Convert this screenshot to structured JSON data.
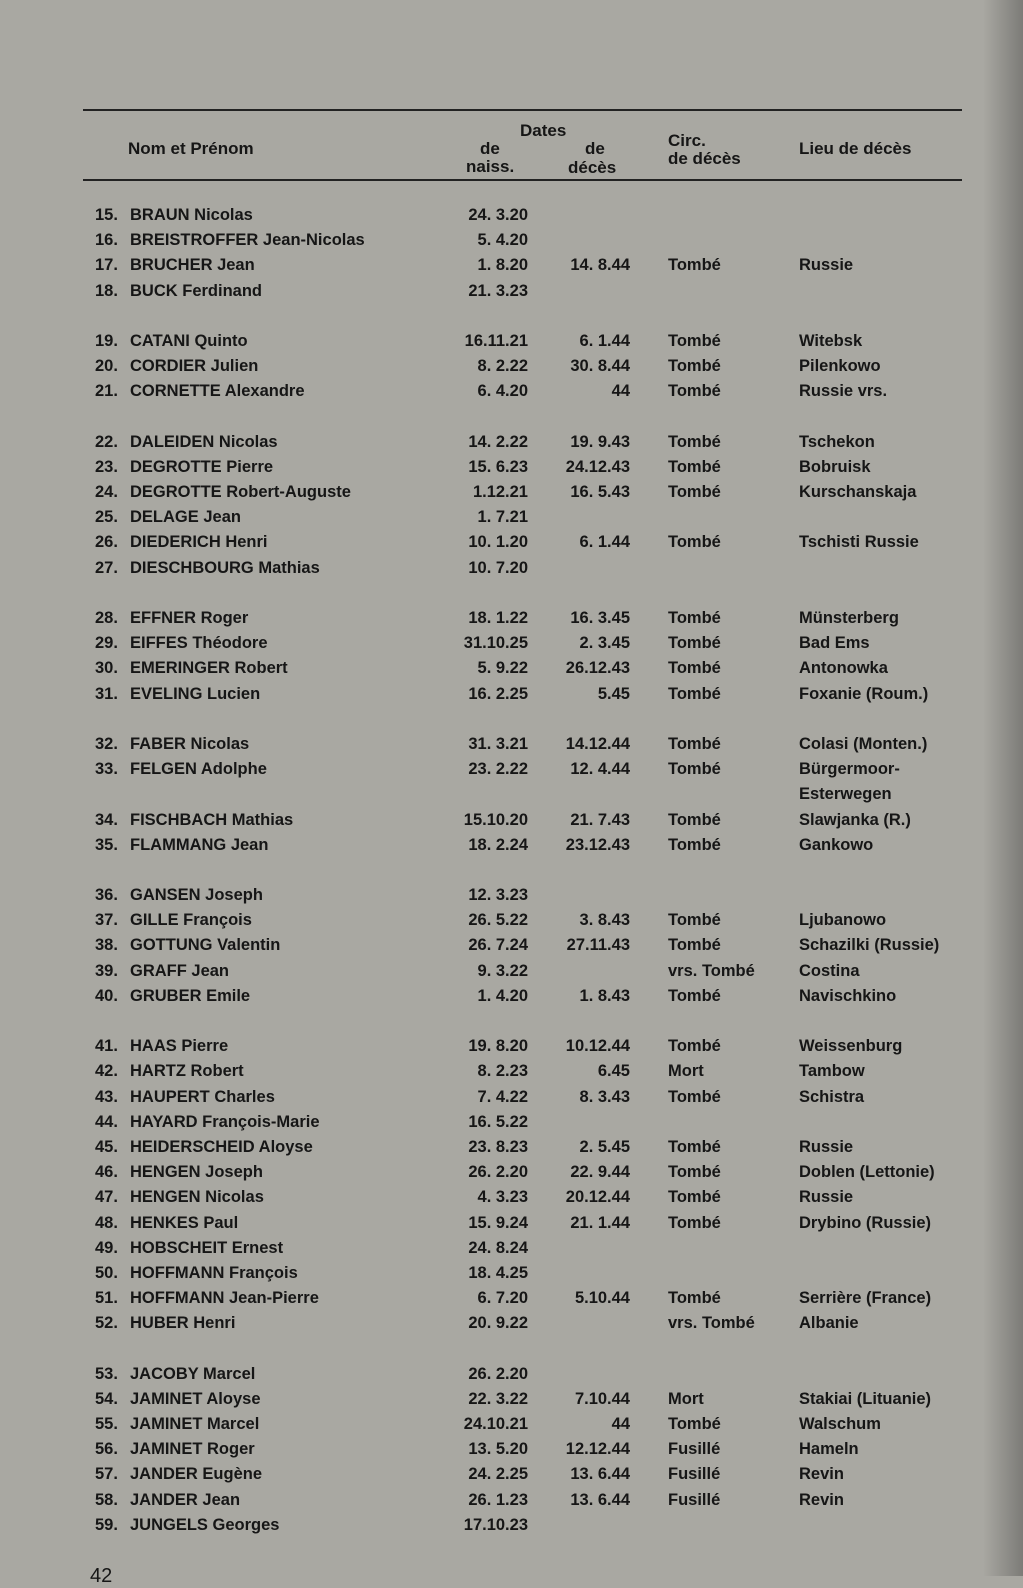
{
  "header": {
    "name_col": "Nom et Prénom",
    "dates": "Dates",
    "birth_1": "de",
    "birth_2": "naiss.",
    "death_1": "de",
    "death_2": "décès",
    "circ_1": "Circ.",
    "circ_2": "de décès",
    "place": "Lieu de décès"
  },
  "groups": [
    [
      {
        "n": "15.",
        "name": "BRAUN Nicolas",
        "birth": "24. 3.20",
        "death": "",
        "circ": "",
        "place": ""
      },
      {
        "n": "16.",
        "name": "BREISTROFFER Jean-Nicolas",
        "birth": "5. 4.20",
        "death": "",
        "circ": "",
        "place": ""
      },
      {
        "n": "17.",
        "name": "BRUCHER Jean",
        "birth": "1. 8.20",
        "death": "14. 8.44",
        "circ": "Tombé",
        "place": "Russie"
      },
      {
        "n": "18.",
        "name": "BUCK Ferdinand",
        "birth": "21. 3.23",
        "death": "",
        "circ": "",
        "place": ""
      }
    ],
    [
      {
        "n": "19.",
        "name": "CATANI Quinto",
        "birth": "16.11.21",
        "death": "6. 1.44",
        "circ": "Tombé",
        "place": "Witebsk"
      },
      {
        "n": "20.",
        "name": "CORDIER Julien",
        "birth": "8. 2.22",
        "death": "30. 8.44",
        "circ": "Tombé",
        "place": "Pilenkowo"
      },
      {
        "n": "21.",
        "name": "CORNETTE Alexandre",
        "birth": "6. 4.20",
        "death": "44",
        "circ": "Tombé",
        "place": "Russie vrs."
      }
    ],
    [
      {
        "n": "22.",
        "name": "DALEIDEN Nicolas",
        "birth": "14. 2.22",
        "death": "19. 9.43",
        "circ": "Tombé",
        "place": "Tschekon"
      },
      {
        "n": "23.",
        "name": "DEGROTTE Pierre",
        "birth": "15. 6.23",
        "death": "24.12.43",
        "circ": "Tombé",
        "place": "Bobruisk"
      },
      {
        "n": "24.",
        "name": "DEGROTTE Robert-Auguste",
        "birth": "1.12.21",
        "death": "16. 5.43",
        "circ": "Tombé",
        "place": "Kurschanskaja"
      },
      {
        "n": "25.",
        "name": "DELAGE Jean",
        "birth": "1. 7.21",
        "death": "",
        "circ": "",
        "place": ""
      },
      {
        "n": "26.",
        "name": "DIEDERICH Henri",
        "birth": "10. 1.20",
        "death": "6. 1.44",
        "circ": "Tombé",
        "place": "Tschisti Russie"
      },
      {
        "n": "27.",
        "name": "DIESCHBOURG Mathias",
        "birth": "10. 7.20",
        "death": "",
        "circ": "",
        "place": ""
      }
    ],
    [
      {
        "n": "28.",
        "name": "EFFNER Roger",
        "birth": "18. 1.22",
        "death": "16. 3.45",
        "circ": "Tombé",
        "place": "Münsterberg"
      },
      {
        "n": "29.",
        "name": "EIFFES Théodore",
        "birth": "31.10.25",
        "death": "2. 3.45",
        "circ": "Tombé",
        "place": "Bad Ems"
      },
      {
        "n": "30.",
        "name": "EMERINGER Robert",
        "birth": "5. 9.22",
        "death": "26.12.43",
        "circ": "Tombé",
        "place": "Antonowka"
      },
      {
        "n": "31.",
        "name": "EVELING Lucien",
        "birth": "16. 2.25",
        "death": "5.45",
        "circ": "Tombé",
        "place": "Foxanie (Roum.)"
      }
    ],
    [
      {
        "n": "32.",
        "name": "FABER Nicolas",
        "birth": "31. 3.21",
        "death": "14.12.44",
        "circ": "Tombé",
        "place": "Colasi (Monten.)"
      },
      {
        "n": "33.",
        "name": "FELGEN Adolphe",
        "birth": "23. 2.22",
        "death": "12. 4.44",
        "circ": "Tombé",
        "place": "Bürgermoor-",
        "place2": "Esterwegen"
      },
      {
        "n": "",
        "name": "",
        "birth": "",
        "death": "",
        "circ": "",
        "place": ""
      },
      {
        "n": "34.",
        "name": "FISCHBACH Mathias",
        "birth": "15.10.20",
        "death": "21. 7.43",
        "circ": "Tombé",
        "place": "Slawjanka (R.)"
      },
      {
        "n": "35.",
        "name": "FLAMMANG Jean",
        "birth": "18. 2.24",
        "death": "23.12.43",
        "circ": "Tombé",
        "place": "Gankowo"
      }
    ],
    [
      {
        "n": "36.",
        "name": "GANSEN Joseph",
        "birth": "12. 3.23",
        "death": "",
        "circ": "",
        "place": ""
      },
      {
        "n": "37.",
        "name": "GILLE François",
        "birth": "26. 5.22",
        "death": "3. 8.43",
        "circ": "Tombé",
        "place": "Ljubanowo"
      },
      {
        "n": "38.",
        "name": "GOTTUNG Valentin",
        "birth": "26. 7.24",
        "death": "27.11.43",
        "circ": "Tombé",
        "place": "Schazilki (Russie)"
      },
      {
        "n": "39.",
        "name": "GRAFF Jean",
        "birth": "9. 3.22",
        "death": "",
        "circ": "vrs. Tombé",
        "place": "Costina"
      },
      {
        "n": "40.",
        "name": "GRUBER Emile",
        "birth": "1. 4.20",
        "death": "1. 8.43",
        "circ": "Tombé",
        "place": "Navischkino"
      }
    ],
    [
      {
        "n": "41.",
        "name": "HAAS Pierre",
        "birth": "19. 8.20",
        "death": "10.12.44",
        "circ": "Tombé",
        "place": "Weissenburg"
      },
      {
        "n": "42.",
        "name": "HARTZ Robert",
        "birth": "8. 2.23",
        "death": "6.45",
        "circ": "Mort",
        "place": "Tambow"
      },
      {
        "n": "43.",
        "name": "HAUPERT Charles",
        "birth": "7. 4.22",
        "death": "8. 3.43",
        "circ": "Tombé",
        "place": "Schistra"
      },
      {
        "n": "44.",
        "name": "HAYARD François-Marie",
        "birth": "16. 5.22",
        "death": "",
        "circ": "",
        "place": ""
      },
      {
        "n": "45.",
        "name": "HEIDERSCHEID Aloyse",
        "birth": "23. 8.23",
        "death": "2. 5.45",
        "circ": "Tombé",
        "place": "Russie"
      },
      {
        "n": "46.",
        "name": "HENGEN Joseph",
        "birth": "26. 2.20",
        "death": "22. 9.44",
        "circ": "Tombé",
        "place": "Doblen (Lettonie)"
      },
      {
        "n": "47.",
        "name": "HENGEN Nicolas",
        "birth": "4. 3.23",
        "death": "20.12.44",
        "circ": "Tombé",
        "place": "Russie"
      },
      {
        "n": "48.",
        "name": "HENKES Paul",
        "birth": "15. 9.24",
        "death": "21. 1.44",
        "circ": "Tombé",
        "place": "Drybino (Russie)"
      },
      {
        "n": "49.",
        "name": "HOBSCHEIT Ernest",
        "birth": "24. 8.24",
        "death": "",
        "circ": "",
        "place": ""
      },
      {
        "n": "50.",
        "name": "HOFFMANN François",
        "birth": "18. 4.25",
        "death": "",
        "circ": "",
        "place": ""
      },
      {
        "n": "51.",
        "name": "HOFFMANN Jean-Pierre",
        "birth": "6. 7.20",
        "death": "5.10.44",
        "circ": "Tombé",
        "place": "Serrière (France)"
      },
      {
        "n": "52.",
        "name": "HUBER Henri",
        "birth": "20. 9.22",
        "death": "",
        "circ": "vrs. Tombé",
        "place": "Albanie"
      }
    ],
    [
      {
        "n": "53.",
        "name": "JACOBY Marcel",
        "birth": "26. 2.20",
        "death": "",
        "circ": "",
        "place": ""
      },
      {
        "n": "54.",
        "name": "JAMINET Aloyse",
        "birth": "22. 3.22",
        "death": "7.10.44",
        "circ": "Mort",
        "place": "Stakiai (Lituanie)"
      },
      {
        "n": "55.",
        "name": "JAMINET Marcel",
        "birth": "24.10.21",
        "death": "44",
        "circ": "Tombé",
        "place": "Walschum"
      },
      {
        "n": "56.",
        "name": "JAMINET Roger",
        "birth": "13. 5.20",
        "death": "12.12.44",
        "circ": "Fusillé",
        "place": "Hameln"
      },
      {
        "n": "57.",
        "name": "JANDER Eugène",
        "birth": "24. 2.25",
        "death": "13. 6.44",
        "circ": "Fusillé",
        "place": "Revin"
      },
      {
        "n": "58.",
        "name": "JANDER Jean",
        "birth": "26. 1.23",
        "death": "13. 6.44",
        "circ": "Fusillé",
        "place": "Revin"
      },
      {
        "n": "59.",
        "name": "JUNGELS Georges",
        "birth": "17.10.23",
        "death": "",
        "circ": "",
        "place": ""
      }
    ]
  ],
  "page_number": "42"
}
